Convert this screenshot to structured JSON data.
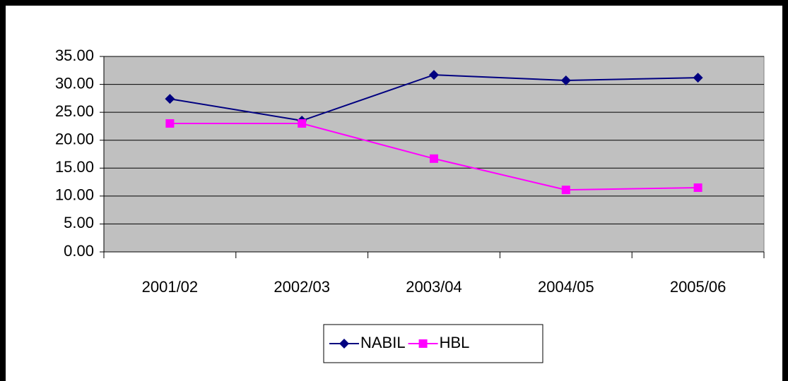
{
  "chart_data": {
    "type": "line",
    "categories": [
      "2001/02",
      "2002/03",
      "2003/04",
      "2004/05",
      "2005/06"
    ],
    "series": [
      {
        "name": "NABIL",
        "color": "#000080",
        "marker": "diamond",
        "values": [
          27.4,
          23.5,
          31.7,
          30.7,
          31.2
        ]
      },
      {
        "name": "HBL",
        "color": "#ff00ff",
        "marker": "square",
        "values": [
          23.0,
          23.0,
          16.7,
          11.1,
          11.5
        ]
      }
    ],
    "ylim": [
      0,
      35
    ],
    "yticks": [
      {
        "value": 0,
        "label": "0.00"
      },
      {
        "value": 5,
        "label": "5.00"
      },
      {
        "value": 10,
        "label": "10.00"
      },
      {
        "value": 15,
        "label": "15.00"
      },
      {
        "value": 20,
        "label": "20.00"
      },
      {
        "value": 25,
        "label": "25.00"
      },
      {
        "value": 30,
        "label": "30.00"
      },
      {
        "value": 35,
        "label": "35.00"
      }
    ],
    "grid": true,
    "legend": "bottom"
  }
}
